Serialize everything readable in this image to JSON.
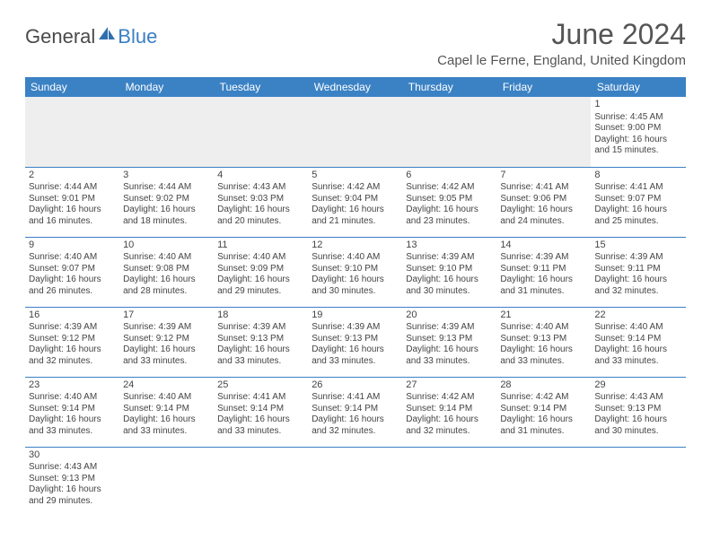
{
  "logo": {
    "text1": "General",
    "text2": "Blue"
  },
  "title": "June 2024",
  "location": "Capel le Ferne, England, United Kingdom",
  "colors": {
    "header_bg": "#3b82c4",
    "header_text": "#ffffff",
    "border": "#3b7fc4",
    "logo_blue": "#3b7fc4",
    "text": "#444444",
    "gray_fill": "#eeeeee"
  },
  "weekdays": [
    "Sunday",
    "Monday",
    "Tuesday",
    "Wednesday",
    "Thursday",
    "Friday",
    "Saturday"
  ],
  "weeks": [
    [
      null,
      null,
      null,
      null,
      null,
      null,
      {
        "n": "1",
        "sr": "4:45 AM",
        "ss": "9:00 PM",
        "dl": "16 hours and 15 minutes."
      }
    ],
    [
      {
        "n": "2",
        "sr": "4:44 AM",
        "ss": "9:01 PM",
        "dl": "16 hours and 16 minutes."
      },
      {
        "n": "3",
        "sr": "4:44 AM",
        "ss": "9:02 PM",
        "dl": "16 hours and 18 minutes."
      },
      {
        "n": "4",
        "sr": "4:43 AM",
        "ss": "9:03 PM",
        "dl": "16 hours and 20 minutes."
      },
      {
        "n": "5",
        "sr": "4:42 AM",
        "ss": "9:04 PM",
        "dl": "16 hours and 21 minutes."
      },
      {
        "n": "6",
        "sr": "4:42 AM",
        "ss": "9:05 PM",
        "dl": "16 hours and 23 minutes."
      },
      {
        "n": "7",
        "sr": "4:41 AM",
        "ss": "9:06 PM",
        "dl": "16 hours and 24 minutes."
      },
      {
        "n": "8",
        "sr": "4:41 AM",
        "ss": "9:07 PM",
        "dl": "16 hours and 25 minutes."
      }
    ],
    [
      {
        "n": "9",
        "sr": "4:40 AM",
        "ss": "9:07 PM",
        "dl": "16 hours and 26 minutes."
      },
      {
        "n": "10",
        "sr": "4:40 AM",
        "ss": "9:08 PM",
        "dl": "16 hours and 28 minutes."
      },
      {
        "n": "11",
        "sr": "4:40 AM",
        "ss": "9:09 PM",
        "dl": "16 hours and 29 minutes."
      },
      {
        "n": "12",
        "sr": "4:40 AM",
        "ss": "9:10 PM",
        "dl": "16 hours and 30 minutes."
      },
      {
        "n": "13",
        "sr": "4:39 AM",
        "ss": "9:10 PM",
        "dl": "16 hours and 30 minutes."
      },
      {
        "n": "14",
        "sr": "4:39 AM",
        "ss": "9:11 PM",
        "dl": "16 hours and 31 minutes."
      },
      {
        "n": "15",
        "sr": "4:39 AM",
        "ss": "9:11 PM",
        "dl": "16 hours and 32 minutes."
      }
    ],
    [
      {
        "n": "16",
        "sr": "4:39 AM",
        "ss": "9:12 PM",
        "dl": "16 hours and 32 minutes."
      },
      {
        "n": "17",
        "sr": "4:39 AM",
        "ss": "9:12 PM",
        "dl": "16 hours and 33 minutes."
      },
      {
        "n": "18",
        "sr": "4:39 AM",
        "ss": "9:13 PM",
        "dl": "16 hours and 33 minutes."
      },
      {
        "n": "19",
        "sr": "4:39 AM",
        "ss": "9:13 PM",
        "dl": "16 hours and 33 minutes."
      },
      {
        "n": "20",
        "sr": "4:39 AM",
        "ss": "9:13 PM",
        "dl": "16 hours and 33 minutes."
      },
      {
        "n": "21",
        "sr": "4:40 AM",
        "ss": "9:13 PM",
        "dl": "16 hours and 33 minutes."
      },
      {
        "n": "22",
        "sr": "4:40 AM",
        "ss": "9:14 PM",
        "dl": "16 hours and 33 minutes."
      }
    ],
    [
      {
        "n": "23",
        "sr": "4:40 AM",
        "ss": "9:14 PM",
        "dl": "16 hours and 33 minutes."
      },
      {
        "n": "24",
        "sr": "4:40 AM",
        "ss": "9:14 PM",
        "dl": "16 hours and 33 minutes."
      },
      {
        "n": "25",
        "sr": "4:41 AM",
        "ss": "9:14 PM",
        "dl": "16 hours and 33 minutes."
      },
      {
        "n": "26",
        "sr": "4:41 AM",
        "ss": "9:14 PM",
        "dl": "16 hours and 32 minutes."
      },
      {
        "n": "27",
        "sr": "4:42 AM",
        "ss": "9:14 PM",
        "dl": "16 hours and 32 minutes."
      },
      {
        "n": "28",
        "sr": "4:42 AM",
        "ss": "9:14 PM",
        "dl": "16 hours and 31 minutes."
      },
      {
        "n": "29",
        "sr": "4:43 AM",
        "ss": "9:13 PM",
        "dl": "16 hours and 30 minutes."
      }
    ],
    [
      {
        "n": "30",
        "sr": "4:43 AM",
        "ss": "9:13 PM",
        "dl": "16 hours and 29 minutes."
      },
      null,
      null,
      null,
      null,
      null,
      null
    ]
  ],
  "labels": {
    "sunrise": "Sunrise:",
    "sunset": "Sunset:",
    "daylight": "Daylight:"
  }
}
